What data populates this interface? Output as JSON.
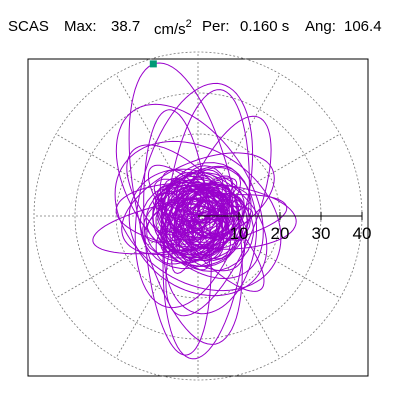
{
  "header": {
    "station": "SCAS",
    "max_label": "Max:",
    "max_value": "38.7",
    "max_unit": "cm/s",
    "max_unit_exp": "2",
    "per_label": "Per:",
    "per_value": "0.160 s",
    "ang_label": "Ang:",
    "ang_value": "106.4"
  },
  "chart_data": {
    "type": "polar-orbit",
    "radial_ticks": [
      10,
      20,
      30,
      40
    ],
    "radial_tick_labels": [
      "10",
      "20",
      "30",
      "40"
    ],
    "r_max": 40,
    "unit": "cm/s^2",
    "grid": true,
    "gridline_angles_deg": [
      0,
      30,
      60,
      90,
      120,
      150,
      180,
      210,
      240,
      270,
      300,
      330
    ],
    "peak_marker": {
      "x": -10.9,
      "y": 37.1,
      "magnitude": 38.7
    },
    "loops": [
      {
        "a": 12,
        "b": 35,
        "rot": 12,
        "cx": -3,
        "cy": 3
      },
      {
        "a": 10,
        "b": 33,
        "rot": -6,
        "cx": 2,
        "cy": -2
      },
      {
        "a": 22,
        "b": 8,
        "rot": -4,
        "cx": 2,
        "cy": 0
      },
      {
        "a": 20,
        "b": 10,
        "rot": 25,
        "cx": 0,
        "cy": 3
      },
      {
        "a": 9,
        "b": 26,
        "rot": -22,
        "cx": 5,
        "cy": 0
      },
      {
        "a": 14,
        "b": 24,
        "rot": 35,
        "cx": -2,
        "cy": 6
      },
      {
        "a": 18,
        "b": 14,
        "rot": -35,
        "cx": 0,
        "cy": -4
      },
      {
        "a": 8,
        "b": 30,
        "rot": 4,
        "cx": -5,
        "cy": -4
      },
      {
        "a": 16,
        "b": 22,
        "rot": 55,
        "cx": 0,
        "cy": 0
      },
      {
        "a": 24,
        "b": 6,
        "rot": 10,
        "cx": -2,
        "cy": -2
      },
      {
        "a": 11,
        "b": 18,
        "rot": -10,
        "cx": 3,
        "cy": -6
      },
      {
        "a": 13,
        "b": 28,
        "rot": -14,
        "cx": -1,
        "cy": 5
      },
      {
        "a": 6,
        "b": 20,
        "rot": 42,
        "cx": 2,
        "cy": -3
      },
      {
        "a": 19,
        "b": 9,
        "rot": -48,
        "cx": -3,
        "cy": 2
      }
    ],
    "core_count": 70,
    "colors": {
      "trace": "#9900cc",
      "grid": "#777777",
      "axis": "#000000",
      "marker": "#009977"
    }
  }
}
